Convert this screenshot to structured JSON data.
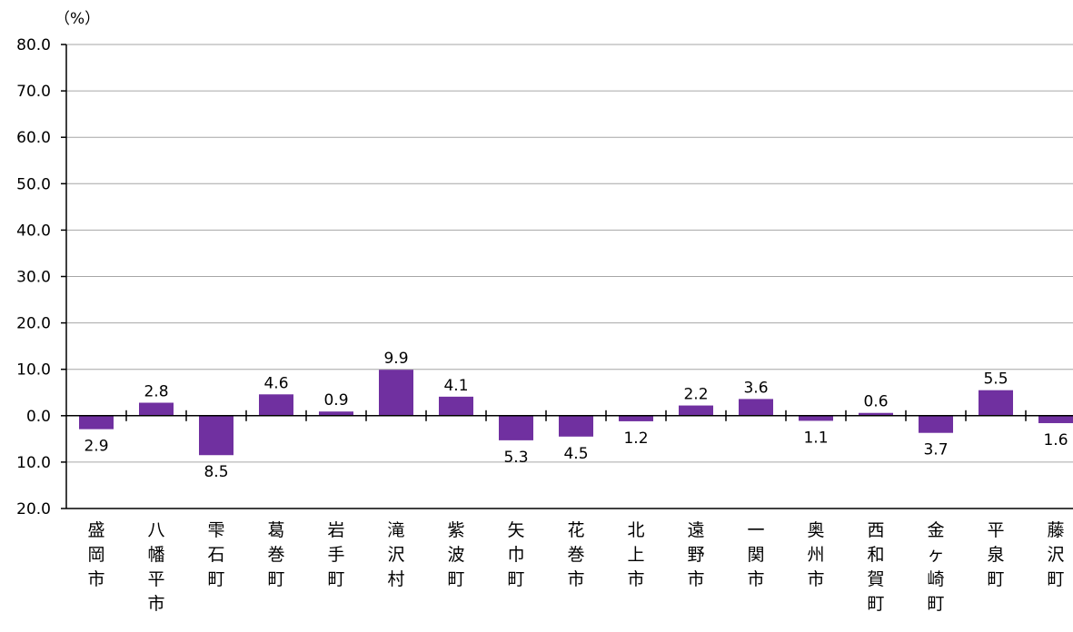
{
  "chart_data": {
    "type": "bar",
    "unit_label": "（%）",
    "title": "",
    "xlabel": "",
    "ylabel": "",
    "ylim": [
      -20,
      80
    ],
    "y_ticks": [
      {
        "value": 80,
        "label": "80.0"
      },
      {
        "value": 70,
        "label": "70.0"
      },
      {
        "value": 60,
        "label": "60.0"
      },
      {
        "value": 50,
        "label": "50.0"
      },
      {
        "value": 40,
        "label": "40.0"
      },
      {
        "value": 30,
        "label": "30.0"
      },
      {
        "value": 20,
        "label": "20.0"
      },
      {
        "value": 10,
        "label": "10.0"
      },
      {
        "value": 0,
        "label": "0.0"
      },
      {
        "value": -10,
        "label": "10.0"
      },
      {
        "value": -20,
        "label": "20.0"
      }
    ],
    "categories": [
      "盛岡市",
      "八幡平市",
      "雫石町",
      "葛巻町",
      "岩手町",
      "滝沢村",
      "紫波町",
      "矢巾町",
      "花巻市",
      "北上市",
      "遠野市",
      "一関市",
      "奥州市",
      "西和賀町",
      "金ヶ崎町",
      "平泉町",
      "藤沢町"
    ],
    "values": [
      -2.9,
      2.8,
      -8.5,
      4.6,
      0.9,
      9.9,
      4.1,
      -5.3,
      -4.5,
      -1.2,
      2.2,
      3.6,
      -1.1,
      0.6,
      -3.7,
      5.5,
      -1.6
    ],
    "data_labels": [
      "2.9",
      "2.8",
      "8.5",
      "4.6",
      "0.9",
      "9.9",
      "4.1",
      "5.3",
      "4.5",
      "1.2",
      "2.2",
      "3.6",
      "1.1",
      "0.6",
      "3.7",
      "5.5",
      "1.6"
    ],
    "grid": true,
    "legend": "none",
    "colors": {
      "bar": "#7030a0",
      "grid": "#a6a6a6",
      "axis": "#000000"
    }
  }
}
